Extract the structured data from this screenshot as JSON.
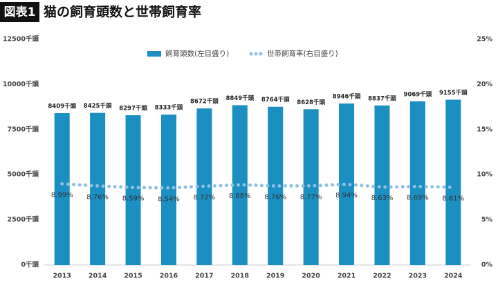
{
  "chart_data": {
    "type": "bar",
    "badge": "図表1",
    "title": "猫の飼育頭数と世帯飼育率",
    "categories": [
      "2013",
      "2014",
      "2015",
      "2016",
      "2017",
      "2018",
      "2019",
      "2020",
      "2021",
      "2022",
      "2023",
      "2024"
    ],
    "series": [
      {
        "name": "飼育頭数(左目盛り)",
        "type": "bar",
        "color": "#1b8ec2",
        "values": [
          8409,
          8425,
          8297,
          8333,
          8672,
          8849,
          8764,
          8628,
          8946,
          8837,
          9069,
          9155
        ],
        "value_labels": [
          "8409千頭",
          "8425千頭",
          "8297千頭",
          "8333千頭",
          "8672千頭",
          "8849千頭",
          "8764千頭",
          "8628千頭",
          "8946千頭",
          "8837千頭",
          "9069千頭",
          "9155千頭"
        ]
      },
      {
        "name": "世帯飼育率(右目盛り)",
        "type": "line",
        "axis": "y2",
        "color": "#8dc0e3",
        "values": [
          8.99,
          8.76,
          8.59,
          8.54,
          8.72,
          8.88,
          8.76,
          8.77,
          8.94,
          8.63,
          8.69,
          8.61
        ],
        "value_labels": [
          "8.99%",
          "8.76%",
          "8.59%",
          "8.54%",
          "8.72%",
          "8.88%",
          "8.76%",
          "8.77%",
          "8.94%",
          "8.63%",
          "8.69%",
          "8.61%"
        ]
      }
    ],
    "ylim": [
      0,
      12500
    ],
    "yticks": [
      {
        "value": 0,
        "label": "0千頭"
      },
      {
        "value": 2500,
        "label": "2500千頭"
      },
      {
        "value": 5000,
        "label": "5000千頭"
      },
      {
        "value": 7500,
        "label": "7500千頭"
      },
      {
        "value": 10000,
        "label": "10000千頭"
      },
      {
        "value": 12500,
        "label": "12500千頭"
      }
    ],
    "y2lim": [
      0,
      25
    ],
    "y2ticks": [
      {
        "value": 0,
        "label": "0%"
      },
      {
        "value": 5,
        "label": "5%"
      },
      {
        "value": 10,
        "label": "10%"
      },
      {
        "value": 15,
        "label": "15%"
      },
      {
        "value": 20,
        "label": "20%"
      },
      {
        "value": 25,
        "label": "25%"
      }
    ],
    "grid": false
  }
}
